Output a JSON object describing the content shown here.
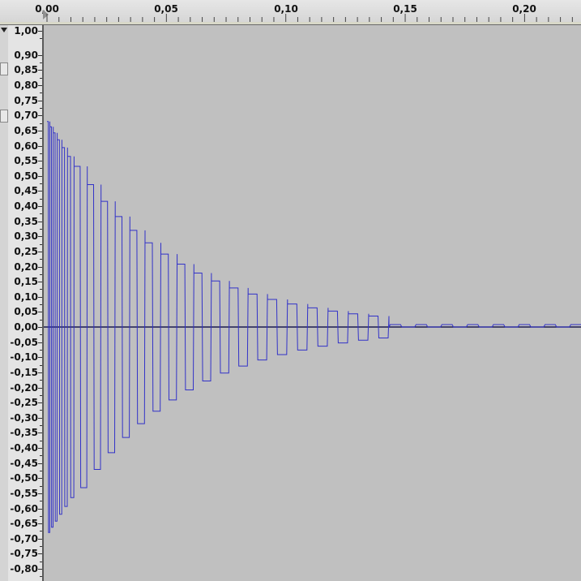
{
  "ruler": {
    "labels": [
      "0,00",
      "0,05",
      "0,10",
      "0,15",
      "0,20"
    ]
  },
  "amplitude_scale": {
    "labels": [
      "1,00",
      "0,90",
      "0,85",
      "0,80",
      "0,75",
      "0,70",
      "0,65",
      "0,60",
      "0,55",
      "0,50",
      "0,45",
      "0,40",
      "0,35",
      "0,30",
      "0,25",
      "0,20",
      "0,15",
      "0,10",
      "0,05",
      "0,00",
      "-0,05",
      "-0,10",
      "-0,15",
      "-0,20",
      "-0,25",
      "-0,30",
      "-0,35",
      "-0,40",
      "-0,45",
      "-0,50",
      "-0,55",
      "-0,60",
      "-0,65",
      "-0,70",
      "-0,75",
      "-0,80"
    ]
  },
  "colors": {
    "background": "#c0c0c0",
    "waveform": "#3232c8",
    "zero_line": "#1a1a50",
    "ruler_bg": "#e4e4e4"
  },
  "icons": {
    "track_menu": "chevron-down-icon",
    "playhead": "playhead-icon"
  },
  "waveform": {
    "description_kind": "decaying oscillation",
    "peak_amplitude": 0.68,
    "decay_end_time": 0.135,
    "time_range": [
      0,
      0.225
    ],
    "amplitude_range": [
      -0.85,
      1.0
    ]
  }
}
